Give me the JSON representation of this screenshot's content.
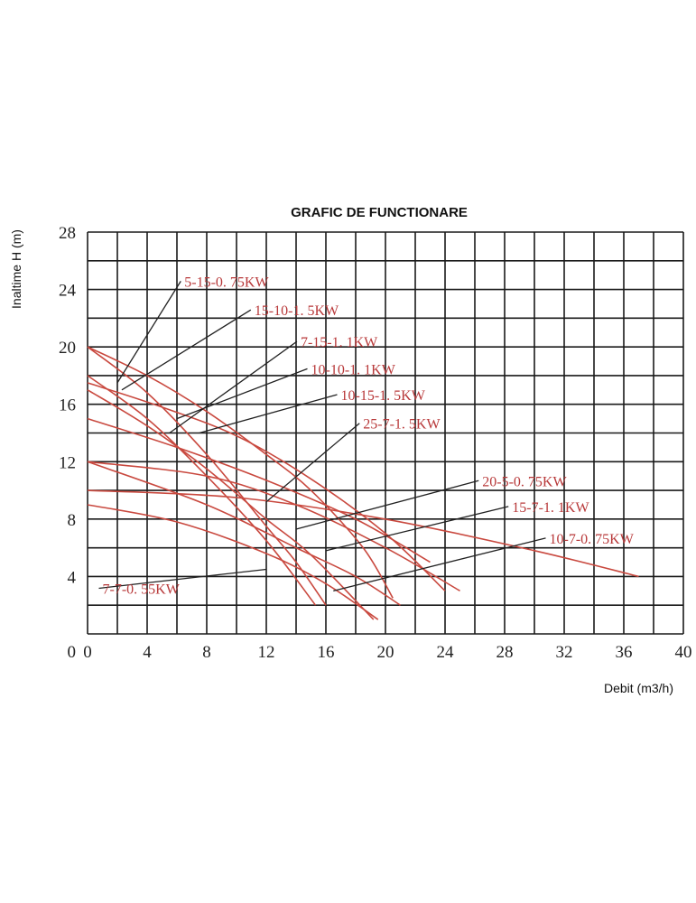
{
  "chart_data": {
    "type": "line",
    "title": "GRAFIC DE FUNCTIONARE",
    "xlabel": "Debit (m3/h)",
    "ylabel": "Inaltime H (m)",
    "xlim": [
      0,
      40
    ],
    "ylim": [
      0,
      28
    ],
    "x_ticks": [
      "0",
      "4",
      "8",
      "12",
      "16",
      "20",
      "24",
      "28",
      "32",
      "36",
      "40"
    ],
    "y_ticks": [
      "0",
      "4",
      "8",
      "12",
      "16",
      "20",
      "24",
      "28"
    ],
    "grid": true,
    "series": [
      {
        "name": "5-15-0. 75KW",
        "x": [
          0,
          4,
          8,
          12,
          15.3
        ],
        "y": [
          18,
          15,
          11,
          6.5,
          2
        ],
        "label_at": [
          6.5,
          24.2
        ],
        "anchor": [
          2,
          17.5
        ]
      },
      {
        "name": "15-10-1. 5KW",
        "x": [
          0,
          4,
          8,
          12,
          15,
          18.5,
          20.5
        ],
        "y": [
          20,
          18,
          15.5,
          12.5,
          10,
          6,
          2.5
        ],
        "label_at": [
          11.2,
          22.2
        ],
        "anchor": [
          2.3,
          17
        ]
      },
      {
        "name": "7-15-1. 1KW",
        "x": [
          0,
          4,
          8,
          12,
          15,
          19.2
        ],
        "y": [
          17,
          14.5,
          11.5,
          8,
          5.5,
          1
        ],
        "label_at": [
          14.3,
          20
        ],
        "anchor": [
          5.5,
          14
        ]
      },
      {
        "name": "10-10-1. 1KW",
        "x": [
          0,
          5,
          10,
          15,
          20,
          24
        ],
        "y": [
          17.5,
          15.8,
          13.8,
          10.8,
          7,
          3
        ],
        "label_at": [
          15,
          18.1
        ],
        "anchor": [
          6,
          15
        ]
      },
      {
        "name": "10-15-1. 5KW",
        "x": [
          0,
          4,
          8,
          12,
          14,
          16
        ],
        "y": [
          20,
          16.8,
          12.5,
          7.5,
          5,
          2
        ],
        "label_at": [
          17,
          16.3
        ],
        "anchor": [
          7.5,
          14
        ]
      },
      {
        "name": "25-7-1. 5KW",
        "x": [
          0,
          6,
          12,
          18,
          23
        ],
        "y": [
          15,
          13,
          10.7,
          8,
          5
        ],
        "label_at": [
          18.5,
          14.3
        ],
        "anchor": [
          12,
          9.2
        ]
      },
      {
        "name": "20-5-0. 75KW",
        "x": [
          0,
          8,
          14,
          18,
          21
        ],
        "y": [
          12,
          9,
          6,
          4,
          2
        ],
        "label_at": [
          26.5,
          10.3
        ],
        "anchor": [
          14,
          7.3
        ]
      },
      {
        "name": "15-7-1. 1KW",
        "x": [
          0,
          8,
          14,
          20,
          25
        ],
        "y": [
          12,
          11,
          9,
          6,
          3
        ],
        "label_at": [
          28.5,
          8.5
        ],
        "anchor": [
          16,
          5.8
        ]
      },
      {
        "name": "10-7-0. 75KW",
        "x": [
          0,
          10,
          20,
          30,
          37
        ],
        "y": [
          10,
          9.5,
          8,
          5.8,
          4
        ],
        "label_at": [
          31,
          6.3
        ],
        "anchor": [
          16.5,
          3
        ]
      },
      {
        "name": "7-7-0. 55KW",
        "x": [
          0,
          6,
          12,
          16,
          19.5
        ],
        "y": [
          9,
          7.8,
          5.6,
          3.5,
          1
        ],
        "label_at": [
          1,
          2.8
        ],
        "anchor": [
          12,
          4.5
        ]
      }
    ]
  }
}
